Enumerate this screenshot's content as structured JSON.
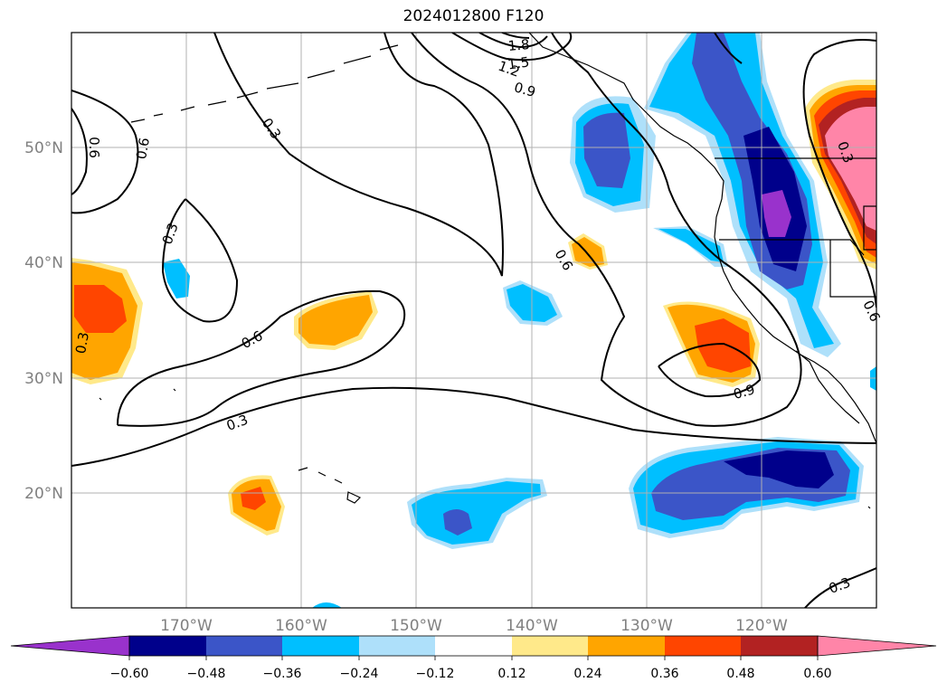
{
  "title": "2024012800 F120",
  "map": {
    "lon_range": [
      -180,
      -110
    ],
    "lat_range": [
      10,
      60
    ],
    "gridlines": true,
    "lon_ticks": [
      "170°W",
      "160°W",
      "150°W",
      "140°W",
      "130°W",
      "120°W"
    ],
    "lat_ticks": [
      "20°N",
      "30°N",
      "40°N",
      "50°N"
    ],
    "contour_labels": [
      "1.8",
      "1.5",
      "1.2",
      "0.9",
      "0.3",
      "0.6",
      "0.6",
      "0.6",
      "0.3",
      "0.3",
      "0.6",
      "0.3",
      "0.6",
      "0.3",
      "0.9",
      "0.3",
      "0.3"
    ]
  },
  "colorbar": {
    "ticks": [
      "−0.60",
      "−0.48",
      "−0.36",
      "−0.24",
      "−0.12",
      "0.12",
      "0.24",
      "0.36",
      "0.48",
      "0.60"
    ],
    "colors": [
      "#9932cc",
      "#00008b",
      "#3b55c8",
      "#00bfff",
      "#aee0fa",
      "#ffffff",
      "#ffe98a",
      "#ffa500",
      "#ff4500",
      "#b22222",
      "#ff85a8"
    ]
  }
}
